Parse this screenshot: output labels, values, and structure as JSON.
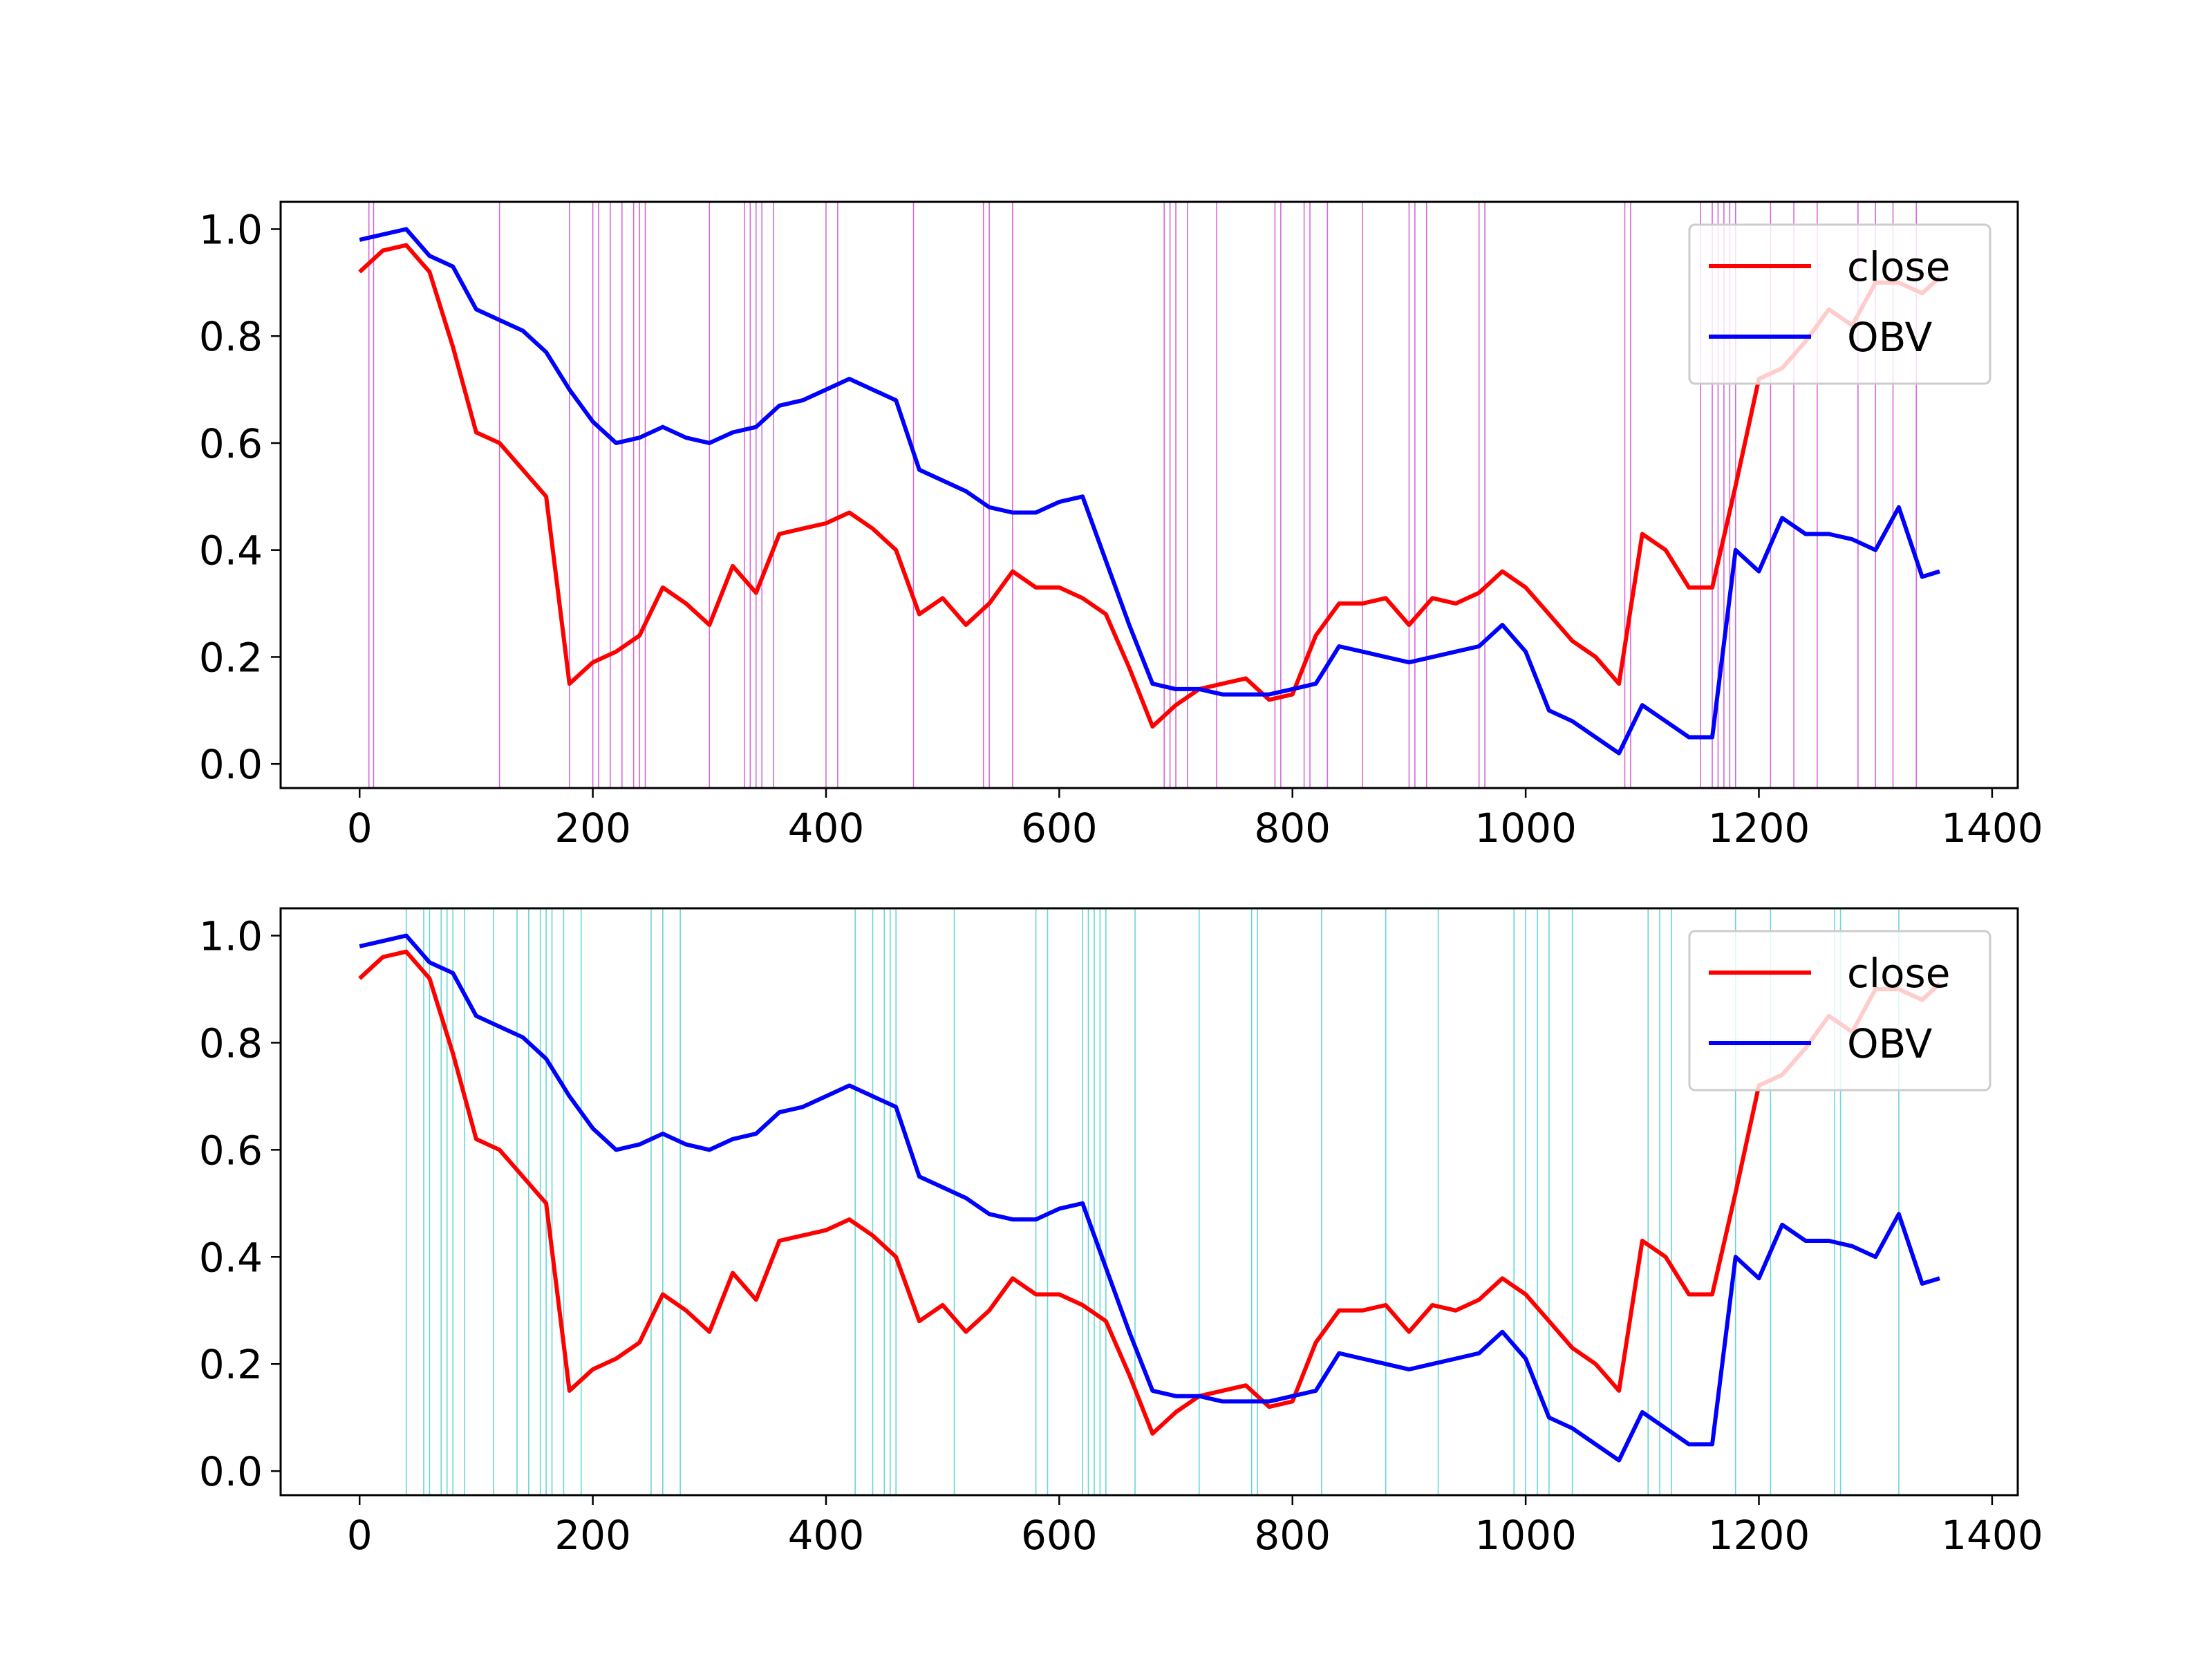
{
  "chart_data": [
    {
      "type": "line",
      "xlim": [
        -67.7,
        1422
      ],
      "ylim": [
        -0.045,
        1.051
      ],
      "xticks": [
        0,
        200,
        400,
        600,
        800,
        1000,
        1200,
        1400
      ],
      "yticks": [
        {
          "value": 0.0,
          "label": "0.0"
        },
        {
          "value": 0.2,
          "label": "0.2"
        },
        {
          "value": 0.4,
          "label": "0.4"
        },
        {
          "value": 0.6,
          "label": "0.6"
        },
        {
          "value": 0.8,
          "label": "0.8"
        },
        {
          "value": 1.0,
          "label": "1.0"
        }
      ],
      "legend": "upper right",
      "vline_color": "#cc44cc",
      "vlines": [
        8,
        12,
        120,
        180,
        200,
        205,
        215,
        225,
        235,
        240,
        245,
        300,
        330,
        335,
        340,
        345,
        355,
        400,
        410,
        475,
        535,
        540,
        560,
        690,
        695,
        700,
        710,
        735,
        785,
        790,
        810,
        815,
        830,
        860,
        900,
        905,
        915,
        960,
        965,
        1085,
        1090,
        1150,
        1160,
        1165,
        1170,
        1175,
        1180,
        1210,
        1230,
        1250,
        1285,
        1300,
        1315,
        1335
      ],
      "x": [
        0,
        20,
        40,
        60,
        80,
        100,
        120,
        140,
        160,
        180,
        200,
        220,
        240,
        260,
        280,
        300,
        320,
        340,
        360,
        380,
        400,
        420,
        440,
        460,
        480,
        500,
        520,
        540,
        560,
        580,
        600,
        620,
        640,
        660,
        680,
        700,
        720,
        740,
        760,
        780,
        800,
        820,
        840,
        860,
        880,
        900,
        920,
        940,
        960,
        980,
        1000,
        1020,
        1040,
        1060,
        1080,
        1100,
        1120,
        1140,
        1160,
        1180,
        1200,
        1220,
        1240,
        1260,
        1280,
        1300,
        1320,
        1340,
        1355
      ],
      "series": [
        {
          "name": "close",
          "color": "#ff0000",
          "values": [
            0.92,
            0.96,
            0.97,
            0.92,
            0.78,
            0.62,
            0.6,
            0.55,
            0.5,
            0.15,
            0.19,
            0.21,
            0.24,
            0.33,
            0.3,
            0.26,
            0.37,
            0.32,
            0.43,
            0.44,
            0.45,
            0.47,
            0.44,
            0.4,
            0.28,
            0.31,
            0.26,
            0.3,
            0.36,
            0.33,
            0.33,
            0.31,
            0.28,
            0.18,
            0.07,
            0.11,
            0.14,
            0.15,
            0.16,
            0.12,
            0.13,
            0.24,
            0.3,
            0.3,
            0.31,
            0.26,
            0.31,
            0.3,
            0.32,
            0.36,
            0.33,
            0.28,
            0.23,
            0.2,
            0.15,
            0.43,
            0.4,
            0.33,
            0.33,
            0.52,
            0.72,
            0.74,
            0.79,
            0.85,
            0.82,
            0.9,
            0.9,
            0.88,
            0.91
          ]
        },
        {
          "name": "OBV",
          "color": "#0000ff",
          "values": [
            0.98,
            0.99,
            1.0,
            0.95,
            0.93,
            0.85,
            0.83,
            0.81,
            0.77,
            0.7,
            0.64,
            0.6,
            0.61,
            0.63,
            0.61,
            0.6,
            0.62,
            0.63,
            0.67,
            0.68,
            0.7,
            0.72,
            0.7,
            0.68,
            0.55,
            0.53,
            0.51,
            0.48,
            0.47,
            0.47,
            0.49,
            0.5,
            0.38,
            0.26,
            0.15,
            0.14,
            0.14,
            0.13,
            0.13,
            0.13,
            0.14,
            0.15,
            0.22,
            0.21,
            0.2,
            0.19,
            0.2,
            0.21,
            0.22,
            0.26,
            0.21,
            0.1,
            0.08,
            0.05,
            0.02,
            0.11,
            0.08,
            0.05,
            0.05,
            0.4,
            0.36,
            0.46,
            0.43,
            0.43,
            0.42,
            0.4,
            0.48,
            0.35,
            0.36
          ]
        }
      ]
    },
    {
      "type": "line",
      "xlim": [
        -67.7,
        1422
      ],
      "ylim": [
        -0.045,
        1.051
      ],
      "xticks": [
        0,
        200,
        400,
        600,
        800,
        1000,
        1200,
        1400
      ],
      "yticks": [
        {
          "value": 0.0,
          "label": "0.0"
        },
        {
          "value": 0.2,
          "label": "0.2"
        },
        {
          "value": 0.4,
          "label": "0.4"
        },
        {
          "value": 0.6,
          "label": "0.6"
        },
        {
          "value": 0.8,
          "label": "0.8"
        },
        {
          "value": 1.0,
          "label": "1.0"
        }
      ],
      "legend": "upper right",
      "vline_color": "#44cccc",
      "vlines": [
        40,
        55,
        60,
        70,
        75,
        80,
        90,
        115,
        135,
        145,
        155,
        160,
        165,
        175,
        190,
        250,
        260,
        275,
        425,
        440,
        450,
        455,
        460,
        510,
        580,
        590,
        620,
        625,
        630,
        635,
        640,
        665,
        720,
        765,
        770,
        825,
        880,
        925,
        990,
        1000,
        1010,
        1020,
        1040,
        1105,
        1115,
        1125,
        1180,
        1210,
        1265,
        1270,
        1320
      ],
      "x": [
        0,
        20,
        40,
        60,
        80,
        100,
        120,
        140,
        160,
        180,
        200,
        220,
        240,
        260,
        280,
        300,
        320,
        340,
        360,
        380,
        400,
        420,
        440,
        460,
        480,
        500,
        520,
        540,
        560,
        580,
        600,
        620,
        640,
        660,
        680,
        700,
        720,
        740,
        760,
        780,
        800,
        820,
        840,
        860,
        880,
        900,
        920,
        940,
        960,
        980,
        1000,
        1020,
        1040,
        1060,
        1080,
        1100,
        1120,
        1140,
        1160,
        1180,
        1200,
        1220,
        1240,
        1260,
        1280,
        1300,
        1320,
        1340,
        1355
      ],
      "series": [
        {
          "name": "close",
          "color": "#ff0000",
          "values": [
            0.92,
            0.96,
            0.97,
            0.92,
            0.78,
            0.62,
            0.6,
            0.55,
            0.5,
            0.15,
            0.19,
            0.21,
            0.24,
            0.33,
            0.3,
            0.26,
            0.37,
            0.32,
            0.43,
            0.44,
            0.45,
            0.47,
            0.44,
            0.4,
            0.28,
            0.31,
            0.26,
            0.3,
            0.36,
            0.33,
            0.33,
            0.31,
            0.28,
            0.18,
            0.07,
            0.11,
            0.14,
            0.15,
            0.16,
            0.12,
            0.13,
            0.24,
            0.3,
            0.3,
            0.31,
            0.26,
            0.31,
            0.3,
            0.32,
            0.36,
            0.33,
            0.28,
            0.23,
            0.2,
            0.15,
            0.43,
            0.4,
            0.33,
            0.33,
            0.52,
            0.72,
            0.74,
            0.79,
            0.85,
            0.82,
            0.9,
            0.9,
            0.88,
            0.91
          ]
        },
        {
          "name": "OBV",
          "color": "#0000ff",
          "values": [
            0.98,
            0.99,
            1.0,
            0.95,
            0.93,
            0.85,
            0.83,
            0.81,
            0.77,
            0.7,
            0.64,
            0.6,
            0.61,
            0.63,
            0.61,
            0.6,
            0.62,
            0.63,
            0.67,
            0.68,
            0.7,
            0.72,
            0.7,
            0.68,
            0.55,
            0.53,
            0.51,
            0.48,
            0.47,
            0.47,
            0.49,
            0.5,
            0.38,
            0.26,
            0.15,
            0.14,
            0.14,
            0.13,
            0.13,
            0.13,
            0.14,
            0.15,
            0.22,
            0.21,
            0.2,
            0.19,
            0.2,
            0.21,
            0.22,
            0.26,
            0.21,
            0.1,
            0.08,
            0.05,
            0.02,
            0.11,
            0.08,
            0.05,
            0.05,
            0.4,
            0.36,
            0.46,
            0.43,
            0.43,
            0.42,
            0.4,
            0.48,
            0.35,
            0.36
          ]
        }
      ]
    }
  ]
}
